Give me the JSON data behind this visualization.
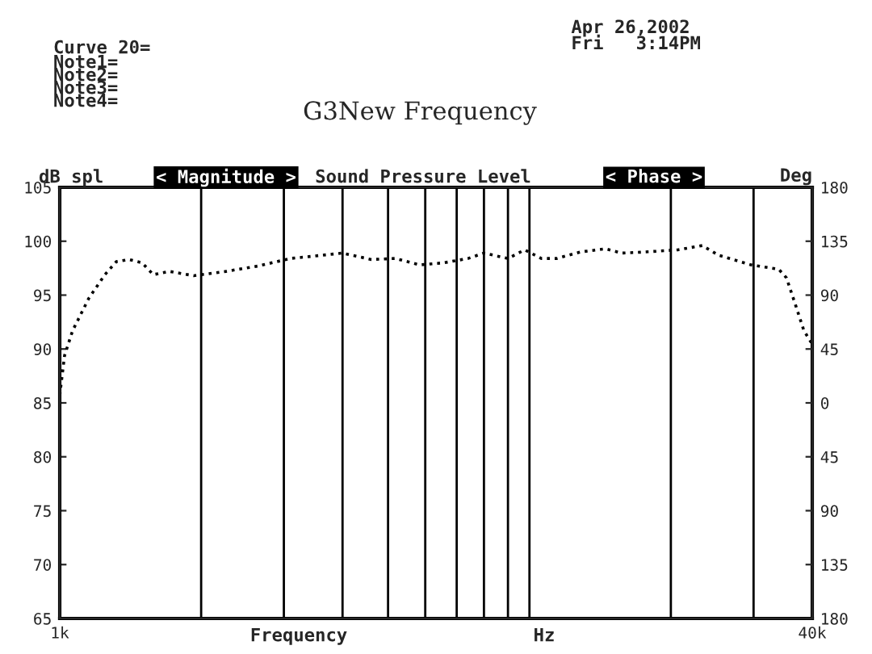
{
  "chart_data": {
    "type": "line",
    "title": "G3New Frequency",
    "xlabel": "Frequency",
    "ylabel": "dB spl",
    "y2label": "Deg",
    "annotations": [
      "Apr 26,2002",
      "Fri   3:14PM",
      "Curve 20=",
      "Note1=",
      "Note2=",
      "Note3=",
      "Note4=",
      "< Magnitude >",
      "Sound Pressure Level",
      "< Phase >",
      "Hz"
    ],
    "log": "x",
    "grid": "x",
    "line_style": "dotted",
    "marker": "none",
    "xlim": [
      1000,
      40000
    ],
    "xticks": [
      {
        "value": 1000,
        "label": "1k"
      },
      {
        "value": 2000,
        "label": null
      },
      {
        "value": 3000,
        "label": null
      },
      {
        "value": 4000,
        "label": null
      },
      {
        "value": 5000,
        "label": null
      },
      {
        "value": 6000,
        "label": null
      },
      {
        "value": 7000,
        "label": null
      },
      {
        "value": 8000,
        "label": null
      },
      {
        "value": 9000,
        "label": null
      },
      {
        "value": 10000,
        "label": null
      },
      {
        "value": 20000,
        "label": null
      },
      {
        "value": 30000,
        "label": null
      },
      {
        "value": 40000,
        "label": "40k"
      }
    ],
    "ylim": [
      65,
      105
    ],
    "yticks": [
      65,
      70,
      75,
      80,
      85,
      90,
      95,
      100,
      105
    ],
    "y2lim": [
      -180,
      180
    ],
    "y2ticks": [
      {
        "value": -180,
        "label": "180"
      },
      {
        "value": -135,
        "label": "135"
      },
      {
        "value": -90,
        "label": "90"
      },
      {
        "value": -45,
        "label": "45"
      },
      0,
      45,
      90,
      135,
      180
    ],
    "series": [
      {
        "color": "#000000",
        "x": [
          1000,
          1024,
          1065,
          1153,
          1248,
          1319,
          1405,
          1497,
          1582,
          1713,
          1928,
          2258,
          2644,
          3098,
          3627,
          3993,
          4608,
          5182,
          5836,
          6571,
          7401,
          7996,
          9000,
          9770,
          10600,
          11440,
          12820,
          14520,
          15720,
          17630,
          20700,
          23340,
          25260,
          29650,
          33940,
          35250,
          36970,
          38400,
          39800
        ],
        "values": [
          85.7,
          89.4,
          91.7,
          94.7,
          96.9,
          98.1,
          98.3,
          98.0,
          96.9,
          97.2,
          96.8,
          97.2,
          97.7,
          98.4,
          98.7,
          98.9,
          98.3,
          98.4,
          97.8,
          98.0,
          98.4,
          98.9,
          98.4,
          99.2,
          98.4,
          98.4,
          99.0,
          99.3,
          98.9,
          99.0,
          99.2,
          99.6,
          98.7,
          97.8,
          97.4,
          96.6,
          93.9,
          91.7,
          90.6
        ]
      }
    ]
  }
}
